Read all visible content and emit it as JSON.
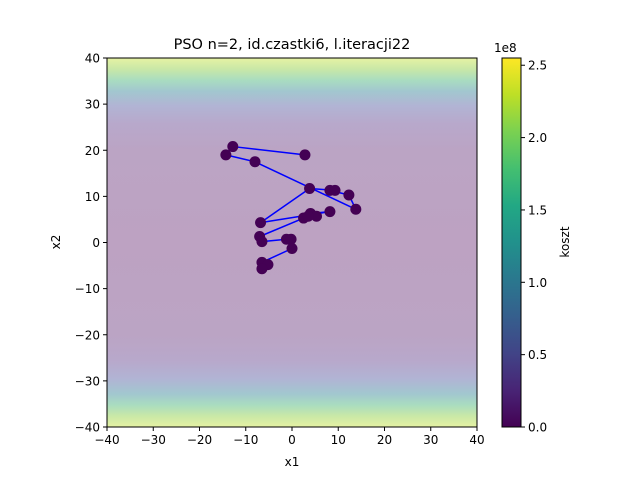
{
  "chart_data": {
    "type": "line",
    "title": "PSO n=2, id.czastki6, l.iteracji22",
    "xlabel": "x1",
    "ylabel": "x2",
    "xlim": [
      -40,
      40
    ],
    "ylim": [
      -40,
      40
    ],
    "x_ticks": [
      "−40",
      "−30",
      "−20",
      "−10",
      "0",
      "10",
      "20",
      "30",
      "40"
    ],
    "y_ticks": [
      "−40",
      "−30",
      "−20",
      "−10",
      "0",
      "10",
      "20",
      "30",
      "40"
    ],
    "x_tick_values": [
      -40,
      -30,
      -20,
      -10,
      0,
      10,
      20,
      30,
      40
    ],
    "y_tick_values": [
      -40,
      -30,
      -20,
      -10,
      0,
      10,
      20,
      30,
      40
    ],
    "series": [
      {
        "line_color": "#0000ff",
        "marker_color": "#440154",
        "points": [
          [
            2.8,
            19.0
          ],
          [
            -12.8,
            20.8
          ],
          [
            -14.3,
            19.0
          ],
          [
            -8.0,
            17.5
          ],
          [
            13.8,
            7.2
          ],
          [
            12.3,
            10.3
          ],
          [
            8.2,
            11.3
          ],
          [
            9.3,
            11.3
          ],
          [
            3.8,
            11.7
          ],
          [
            -6.8,
            4.3
          ],
          [
            8.2,
            6.7
          ],
          [
            4.0,
            6.3
          ],
          [
            2.5,
            5.3
          ],
          [
            5.3,
            5.7
          ],
          [
            3.5,
            5.7
          ],
          [
            -7.0,
            1.3
          ],
          [
            -6.5,
            0.2
          ],
          [
            -1.2,
            0.7
          ],
          [
            -0.2,
            0.7
          ],
          [
            0.0,
            -1.3
          ],
          [
            -6.5,
            -4.3
          ],
          [
            -5.2,
            -4.8
          ],
          [
            -6.5,
            -5.7
          ]
        ]
      }
    ],
    "background": {
      "type": "contour-fill",
      "description_cmap": "viridis",
      "alpha": 0.35
    },
    "colorbar": {
      "label": "koszt",
      "exponent_label": "1e8",
      "range": [
        0,
        2.55
      ],
      "ticks": [
        "0.0",
        "0.5",
        "1.0",
        "1.5",
        "2.0",
        "2.5"
      ],
      "tick_values": [
        0.0,
        0.5,
        1.0,
        1.5,
        2.0,
        2.5
      ]
    }
  }
}
